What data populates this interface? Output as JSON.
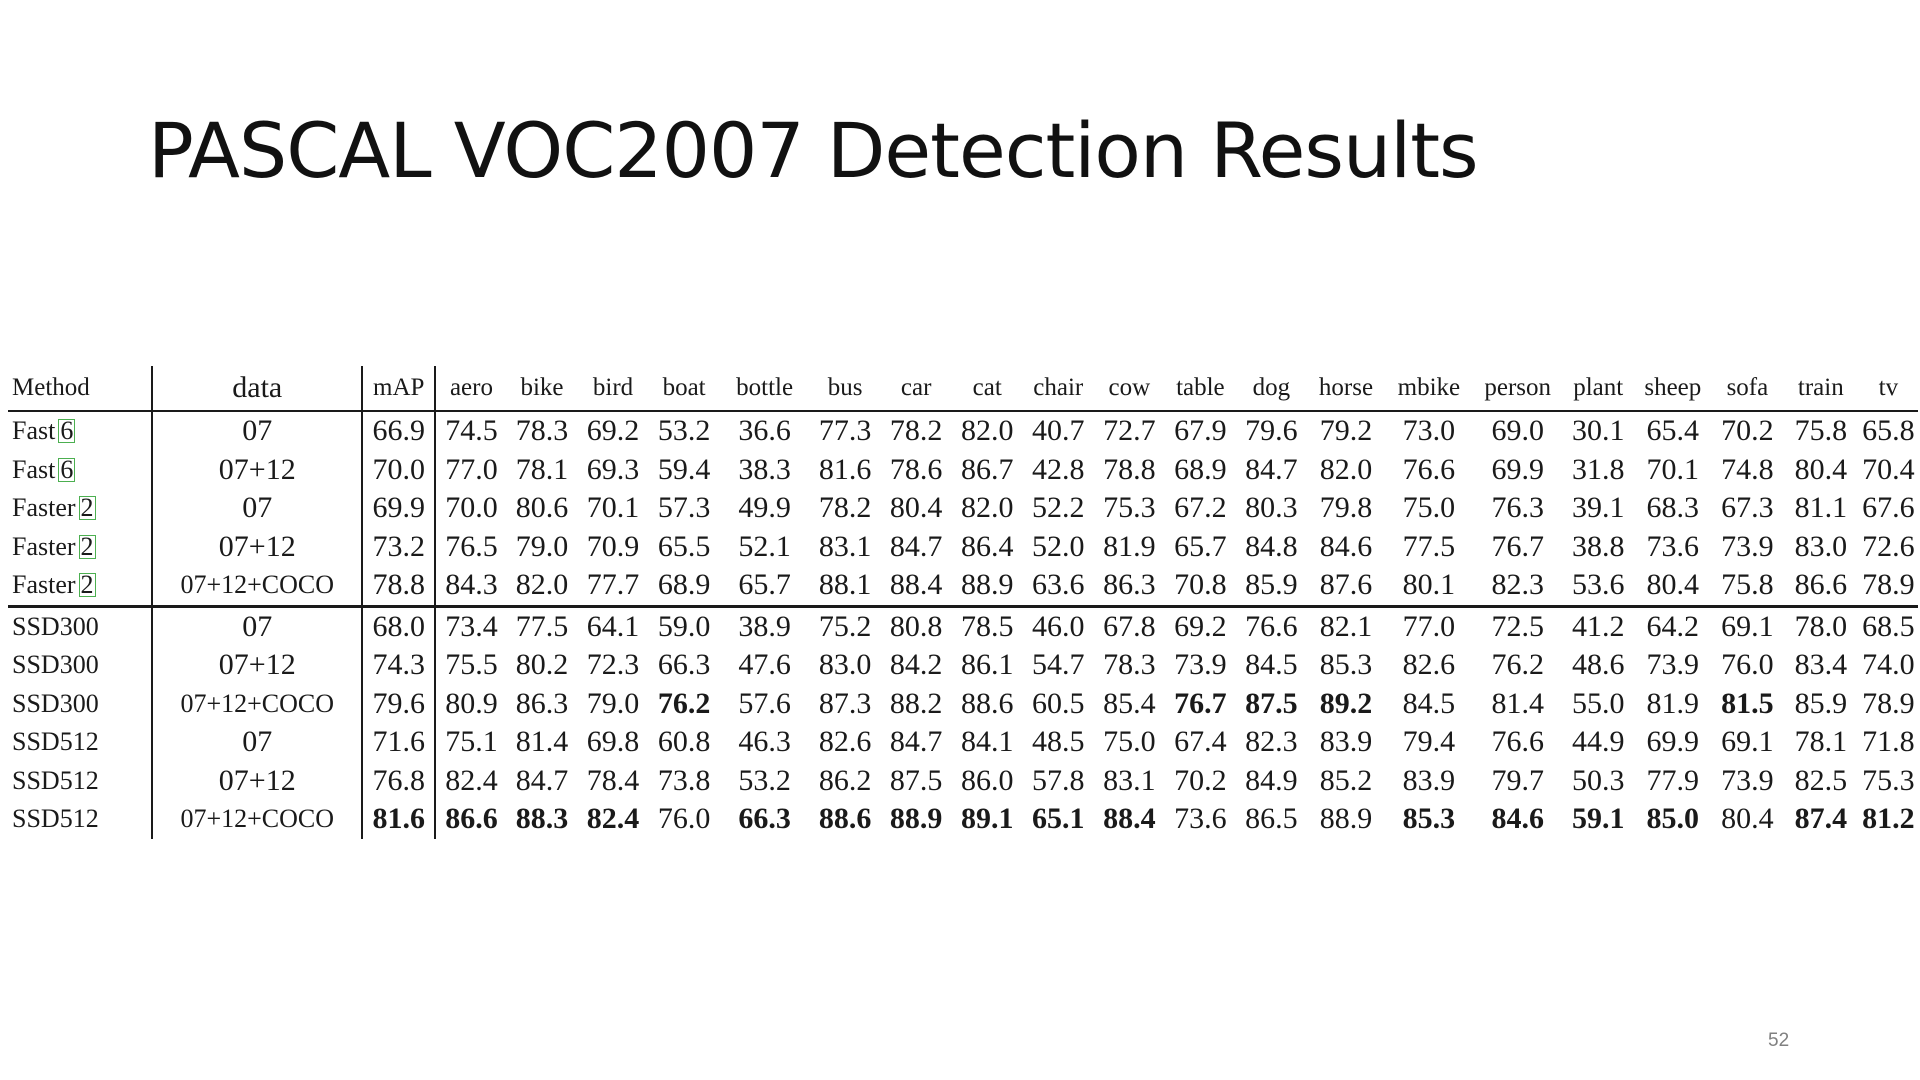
{
  "slide": {
    "title": "PASCAL VOC2007 Detection Results",
    "page_number": "52"
  },
  "table": {
    "columns": [
      "Method",
      "data",
      "mAP",
      "aero",
      "bike",
      "bird",
      "boat",
      "bottle",
      "bus",
      "car",
      "cat",
      "chair",
      "cow",
      "table",
      "dog",
      "horse",
      "mbike",
      "person",
      "plant",
      "sheep",
      "sofa",
      "train",
      "tv"
    ],
    "rows": [
      {
        "method": "Fast",
        "ref": "6",
        "data": "07",
        "values": [
          "66.9",
          "74.5",
          "78.3",
          "69.2",
          "53.2",
          "36.6",
          "77.3",
          "78.2",
          "82.0",
          "40.7",
          "72.7",
          "67.9",
          "79.6",
          "79.2",
          "73.0",
          "69.0",
          "30.1",
          "65.4",
          "70.2",
          "75.8",
          "65.8"
        ],
        "bold": []
      },
      {
        "method": "Fast",
        "ref": "6",
        "data": "07+12",
        "values": [
          "70.0",
          "77.0",
          "78.1",
          "69.3",
          "59.4",
          "38.3",
          "81.6",
          "78.6",
          "86.7",
          "42.8",
          "78.8",
          "68.9",
          "84.7",
          "82.0",
          "76.6",
          "69.9",
          "31.8",
          "70.1",
          "74.8",
          "80.4",
          "70.4"
        ],
        "bold": []
      },
      {
        "method": "Faster",
        "ref": "2",
        "data": "07",
        "values": [
          "69.9",
          "70.0",
          "80.6",
          "70.1",
          "57.3",
          "49.9",
          "78.2",
          "80.4",
          "82.0",
          "52.2",
          "75.3",
          "67.2",
          "80.3",
          "79.8",
          "75.0",
          "76.3",
          "39.1",
          "68.3",
          "67.3",
          "81.1",
          "67.6"
        ],
        "bold": []
      },
      {
        "method": "Faster",
        "ref": "2",
        "data": "07+12",
        "values": [
          "73.2",
          "76.5",
          "79.0",
          "70.9",
          "65.5",
          "52.1",
          "83.1",
          "84.7",
          "86.4",
          "52.0",
          "81.9",
          "65.7",
          "84.8",
          "84.6",
          "77.5",
          "76.7",
          "38.8",
          "73.6",
          "73.9",
          "83.0",
          "72.6"
        ],
        "bold": []
      },
      {
        "method": "Faster",
        "ref": "2",
        "data": "07+12+COCO",
        "values": [
          "78.8",
          "84.3",
          "82.0",
          "77.7",
          "68.9",
          "65.7",
          "88.1",
          "88.4",
          "88.9",
          "63.6",
          "86.3",
          "70.8",
          "85.9",
          "87.6",
          "80.1",
          "82.3",
          "53.6",
          "80.4",
          "75.8",
          "86.6",
          "78.9"
        ],
        "bold": []
      },
      {
        "method": "SSD300",
        "ref": "",
        "data": "07",
        "values": [
          "68.0",
          "73.4",
          "77.5",
          "64.1",
          "59.0",
          "38.9",
          "75.2",
          "80.8",
          "78.5",
          "46.0",
          "67.8",
          "69.2",
          "76.6",
          "82.1",
          "77.0",
          "72.5",
          "41.2",
          "64.2",
          "69.1",
          "78.0",
          "68.5"
        ],
        "bold": []
      },
      {
        "method": "SSD300",
        "ref": "",
        "data": "07+12",
        "values": [
          "74.3",
          "75.5",
          "80.2",
          "72.3",
          "66.3",
          "47.6",
          "83.0",
          "84.2",
          "86.1",
          "54.7",
          "78.3",
          "73.9",
          "84.5",
          "85.3",
          "82.6",
          "76.2",
          "48.6",
          "73.9",
          "76.0",
          "83.4",
          "74.0"
        ],
        "bold": []
      },
      {
        "method": "SSD300",
        "ref": "",
        "data": "07+12+COCO",
        "values": [
          "79.6",
          "80.9",
          "86.3",
          "79.0",
          "76.2",
          "57.6",
          "87.3",
          "88.2",
          "88.6",
          "60.5",
          "85.4",
          "76.7",
          "87.5",
          "89.2",
          "84.5",
          "81.4",
          "55.0",
          "81.9",
          "81.5",
          "85.9",
          "78.9"
        ],
        "bold": [
          4,
          11,
          12,
          13,
          18
        ]
      },
      {
        "method": "SSD512",
        "ref": "",
        "data": "07",
        "values": [
          "71.6",
          "75.1",
          "81.4",
          "69.8",
          "60.8",
          "46.3",
          "82.6",
          "84.7",
          "84.1",
          "48.5",
          "75.0",
          "67.4",
          "82.3",
          "83.9",
          "79.4",
          "76.6",
          "44.9",
          "69.9",
          "69.1",
          "78.1",
          "71.8"
        ],
        "bold": []
      },
      {
        "method": "SSD512",
        "ref": "",
        "data": "07+12",
        "values": [
          "76.8",
          "82.4",
          "84.7",
          "78.4",
          "73.8",
          "53.2",
          "86.2",
          "87.5",
          "86.0",
          "57.8",
          "83.1",
          "70.2",
          "84.9",
          "85.2",
          "83.9",
          "79.7",
          "50.3",
          "77.9",
          "73.9",
          "82.5",
          "75.3"
        ],
        "bold": []
      },
      {
        "method": "SSD512",
        "ref": "",
        "data": "07+12+COCO",
        "values": [
          "81.6",
          "86.6",
          "88.3",
          "82.4",
          "76.0",
          "66.3",
          "88.6",
          "88.9",
          "89.1",
          "65.1",
          "88.4",
          "73.6",
          "86.5",
          "88.9",
          "85.3",
          "84.6",
          "59.1",
          "85.0",
          "80.4",
          "87.4",
          "81.2"
        ],
        "bold": [
          0,
          1,
          2,
          3,
          5,
          6,
          7,
          8,
          9,
          10,
          14,
          15,
          16,
          17,
          19,
          20
        ]
      }
    ]
  }
}
